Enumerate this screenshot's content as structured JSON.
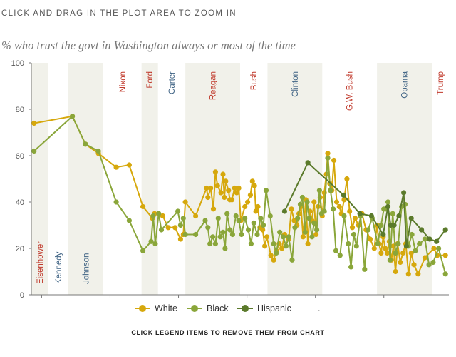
{
  "instruction": "CLICK AND DRAG IN THE PLOT AREA TO ZOOM IN",
  "footer": "CLICK LEGEND ITEMS TO REMOVE THEM FROM CHART",
  "legend_extra": ".",
  "colors": {
    "white": "#d6a80c",
    "black": "#8aa63a",
    "hispanic": "#5b7a2b",
    "republican": "#c0392b",
    "democrat": "#3f6384",
    "band": "#f1f1ea",
    "axis": "#777777"
  },
  "chart_data": {
    "type": "line",
    "title": "% who trust the govt in Washington always or most of the time",
    "xlabel": "",
    "ylabel": "",
    "xlim": [
      1958.5,
      2019.5
    ],
    "ylim": [
      0,
      100
    ],
    "x_ticks": [
      1960,
      1970,
      1980,
      1990,
      2000,
      2010
    ],
    "y_ticks": [
      0,
      20,
      40,
      60,
      80,
      100
    ],
    "grid": false,
    "legend_position": "bottom-center",
    "presidents": [
      {
        "name": "Eisenhower",
        "start": 1958.5,
        "end": 1961,
        "party": "R",
        "shaded": true
      },
      {
        "name": "Kennedy",
        "start": 1961,
        "end": 1963.9,
        "party": "D",
        "shaded": false
      },
      {
        "name": "Johnson",
        "start": 1963.9,
        "end": 1969,
        "party": "D",
        "shaded": true
      },
      {
        "name": "Nixon",
        "start": 1969,
        "end": 1974.6,
        "party": "R",
        "shaded": false
      },
      {
        "name": "Ford",
        "start": 1974.6,
        "end": 1977,
        "party": "R",
        "shaded": true
      },
      {
        "name": "Carter",
        "start": 1977,
        "end": 1981,
        "party": "D",
        "shaded": false
      },
      {
        "name": "Reagan",
        "start": 1981,
        "end": 1989,
        "party": "R",
        "shaded": true
      },
      {
        "name": "Bush",
        "start": 1989,
        "end": 1993,
        "party": "R",
        "shaded": false
      },
      {
        "name": "Clinton",
        "start": 1993,
        "end": 2001,
        "party": "D",
        "shaded": true
      },
      {
        "name": "G.W. Bush",
        "start": 2001,
        "end": 2009,
        "party": "R",
        "shaded": false
      },
      {
        "name": "Obama",
        "start": 2009,
        "end": 2017,
        "party": "D",
        "shaded": true
      },
      {
        "name": "Trump",
        "start": 2017,
        "end": 2019.5,
        "party": "R",
        "shaded": false
      }
    ],
    "series": [
      {
        "name": "White",
        "color_key": "white",
        "points": [
          [
            1958.9,
            74
          ],
          [
            1964.5,
            77
          ],
          [
            1966.4,
            65
          ],
          [
            1968.3,
            61
          ],
          [
            1970.9,
            55
          ],
          [
            1972.8,
            56
          ],
          [
            1974.8,
            38
          ],
          [
            1976.2,
            33
          ],
          [
            1976.5,
            35
          ],
          [
            1977.1,
            35
          ],
          [
            1977.7,
            34
          ],
          [
            1978.5,
            29
          ],
          [
            1979.5,
            29
          ],
          [
            1980.3,
            24
          ],
          [
            1980.7,
            26
          ],
          [
            1981.0,
            40
          ],
          [
            1982.5,
            34
          ],
          [
            1984.1,
            46
          ],
          [
            1984.3,
            42
          ],
          [
            1984.7,
            46
          ],
          [
            1985.1,
            37
          ],
          [
            1985.4,
            53
          ],
          [
            1985.7,
            47
          ],
          [
            1986.2,
            44
          ],
          [
            1986.5,
            52
          ],
          [
            1986.7,
            42
          ],
          [
            1986.9,
            49
          ],
          [
            1987.3,
            45
          ],
          [
            1987.5,
            41
          ],
          [
            1987.8,
            41
          ],
          [
            1988.2,
            46
          ],
          [
            1988.5,
            44
          ],
          [
            1988.8,
            46
          ],
          [
            1989.1,
            32
          ],
          [
            1989.7,
            38
          ],
          [
            1990.1,
            40
          ],
          [
            1990.5,
            43
          ],
          [
            1990.8,
            49
          ],
          [
            1991.1,
            47
          ],
          [
            1991.3,
            36
          ],
          [
            1991.6,
            38
          ],
          [
            1991.9,
            29
          ],
          [
            1992.3,
            28
          ],
          [
            1992.6,
            21
          ],
          [
            1992.9,
            25
          ],
          [
            1993.5,
            17
          ],
          [
            1993.9,
            15
          ],
          [
            1994.3,
            19
          ],
          [
            1994.7,
            22
          ],
          [
            1995.1,
            20
          ],
          [
            1995.5,
            26
          ],
          [
            1996.1,
            24
          ],
          [
            1996.5,
            37
          ],
          [
            1996.9,
            32
          ],
          [
            1997.3,
            30
          ],
          [
            1997.6,
            35
          ],
          [
            1997.9,
            38
          ],
          [
            1998.2,
            25
          ],
          [
            1998.6,
            41
          ],
          [
            1998.9,
            22
          ],
          [
            1999.2,
            36
          ],
          [
            1999.5,
            32
          ],
          [
            1999.8,
            40
          ],
          [
            2000.1,
            26
          ],
          [
            2000.4,
            38
          ],
          [
            2000.7,
            42
          ],
          [
            2001.0,
            34
          ],
          [
            2001.3,
            44
          ],
          [
            2001.6,
            52
          ],
          [
            2001.8,
            61
          ],
          [
            2002.1,
            48
          ],
          [
            2002.4,
            45
          ],
          [
            2002.7,
            58
          ],
          [
            2003.1,
            40
          ],
          [
            2003.5,
            38
          ],
          [
            2003.8,
            35
          ],
          [
            2004.2,
            41
          ],
          [
            2004.6,
            50
          ],
          [
            2005.0,
            36
          ],
          [
            2005.4,
            29
          ],
          [
            2005.8,
            33
          ],
          [
            2006.3,
            30
          ],
          [
            2006.8,
            35
          ],
          [
            2007.4,
            28
          ],
          [
            2008.0,
            24
          ],
          [
            2008.6,
            20
          ],
          [
            2009.0,
            30
          ],
          [
            2009.3,
            22
          ],
          [
            2009.6,
            18
          ],
          [
            2009.9,
            25
          ],
          [
            2010.2,
            20
          ],
          [
            2010.5,
            18
          ],
          [
            2010.8,
            23
          ],
          [
            2011.1,
            15
          ],
          [
            2011.4,
            21
          ],
          [
            2011.7,
            10
          ],
          [
            2012.0,
            22
          ],
          [
            2012.4,
            14
          ],
          [
            2012.8,
            18
          ],
          [
            2013.2,
            22
          ],
          [
            2013.6,
            9
          ],
          [
            2014.0,
            18
          ],
          [
            2014.4,
            13
          ],
          [
            2015.0,
            9
          ],
          [
            2016.0,
            16
          ],
          [
            2017.3,
            20
          ],
          [
            2017.8,
            17
          ],
          [
            2019.0,
            17
          ]
        ]
      },
      {
        "name": "Black",
        "color_key": "black",
        "points": [
          [
            1958.9,
            62
          ],
          [
            1964.5,
            77
          ],
          [
            1966.4,
            65
          ],
          [
            1968.3,
            62
          ],
          [
            1970.9,
            40
          ],
          [
            1972.8,
            32
          ],
          [
            1974.8,
            19
          ],
          [
            1976.0,
            23
          ],
          [
            1976.3,
            34
          ],
          [
            1976.6,
            22
          ],
          [
            1977.1,
            35
          ],
          [
            1977.5,
            28
          ],
          [
            1979.9,
            36
          ],
          [
            1980.3,
            30
          ],
          [
            1980.7,
            33
          ],
          [
            1981.0,
            26
          ],
          [
            1982.5,
            26
          ],
          [
            1983.9,
            32
          ],
          [
            1984.3,
            29
          ],
          [
            1984.6,
            22
          ],
          [
            1985.0,
            25
          ],
          [
            1985.4,
            22
          ],
          [
            1985.8,
            33
          ],
          [
            1986.1,
            25
          ],
          [
            1986.5,
            27
          ],
          [
            1986.8,
            20
          ],
          [
            1987.1,
            35
          ],
          [
            1987.5,
            28
          ],
          [
            1987.9,
            26
          ],
          [
            1988.4,
            34
          ],
          [
            1988.8,
            32
          ],
          [
            1989.2,
            26
          ],
          [
            1989.7,
            33
          ],
          [
            1990.2,
            28
          ],
          [
            1990.6,
            22
          ],
          [
            1991.0,
            31
          ],
          [
            1991.5,
            26
          ],
          [
            1992.0,
            33
          ],
          [
            1992.4,
            30
          ],
          [
            1992.8,
            45
          ],
          [
            1993.4,
            34
          ],
          [
            1993.9,
            22
          ],
          [
            1994.3,
            18
          ],
          [
            1994.8,
            27
          ],
          [
            1995.3,
            25
          ],
          [
            1995.7,
            21
          ],
          [
            1996.1,
            25
          ],
          [
            1996.6,
            15
          ],
          [
            1997.0,
            29
          ],
          [
            1997.4,
            33
          ],
          [
            1997.8,
            39
          ],
          [
            1998.1,
            42
          ],
          [
            1998.5,
            27
          ],
          [
            1998.8,
            40
          ],
          [
            1999.1,
            33
          ],
          [
            1999.5,
            25
          ],
          [
            1999.8,
            31
          ],
          [
            2000.2,
            28
          ],
          [
            2000.6,
            45
          ],
          [
            2000.9,
            35
          ],
          [
            2001.3,
            36
          ],
          [
            2001.8,
            59
          ],
          [
            2002.2,
            45
          ],
          [
            2002.6,
            37
          ],
          [
            2003.0,
            19
          ],
          [
            2003.6,
            17
          ],
          [
            2004.2,
            34
          ],
          [
            2004.8,
            22
          ],
          [
            2005.2,
            12
          ],
          [
            2005.6,
            26
          ],
          [
            2006.0,
            21
          ],
          [
            2006.6,
            34
          ],
          [
            2007.2,
            11
          ],
          [
            2007.7,
            28
          ],
          [
            2008.3,
            33
          ],
          [
            2009.1,
            22
          ],
          [
            2009.6,
            30
          ],
          [
            2010.0,
            37
          ],
          [
            2010.3,
            37
          ],
          [
            2010.6,
            40
          ],
          [
            2010.9,
            15
          ],
          [
            2011.3,
            35
          ],
          [
            2011.7,
            18
          ],
          [
            2012.1,
            22
          ],
          [
            2012.6,
            38
          ],
          [
            2013.1,
            39
          ],
          [
            2013.6,
            21
          ],
          [
            2014.1,
            26
          ],
          [
            2014.6,
            19
          ],
          [
            2015.2,
            22
          ],
          [
            2016.0,
            24
          ],
          [
            2016.6,
            13
          ],
          [
            2017.2,
            14
          ],
          [
            2018.0,
            20
          ],
          [
            2019.0,
            9
          ]
        ]
      },
      {
        "name": "Hispanic",
        "color_key": "hispanic",
        "points": [
          [
            1995.5,
            36
          ],
          [
            1998.9,
            57
          ],
          [
            2004.1,
            43
          ],
          [
            2006.5,
            35
          ],
          [
            2008.2,
            34
          ],
          [
            2009.9,
            26
          ],
          [
            2010.6,
            38
          ],
          [
            2011.0,
            30
          ],
          [
            2011.5,
            30
          ],
          [
            2012.2,
            34
          ],
          [
            2012.9,
            44
          ],
          [
            2013.3,
            21
          ],
          [
            2014.0,
            33
          ],
          [
            2015.5,
            28
          ],
          [
            2016.7,
            24
          ],
          [
            2017.7,
            23
          ],
          [
            2019.0,
            28
          ]
        ]
      }
    ]
  }
}
